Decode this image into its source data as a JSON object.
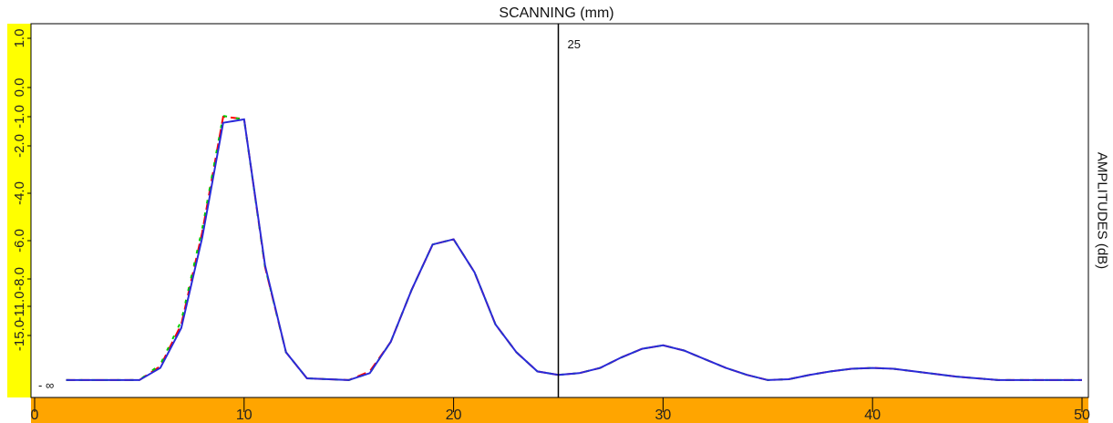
{
  "chart_data": {
    "type": "line",
    "title": "SCANNING (mm)",
    "ylabel": "AMPLITUDES (dB)",
    "xlabel": "",
    "xlim": [
      0,
      50
    ],
    "x_ticks": [
      0,
      10,
      20,
      30,
      40,
      50
    ],
    "x_tick_labels": [
      "0",
      "10",
      "20",
      "30",
      "40",
      "50"
    ],
    "y_tick_labels": [
      "1.0",
      "0.0",
      "-1.0",
      "-2.0",
      "-4.0",
      "-6.0",
      "-8.0",
      "-11.0",
      "-15.0"
    ],
    "bottom_label": "- ∞",
    "cursor": {
      "x": 25,
      "label": "25"
    },
    "series": [
      {
        "color": "#ff0000",
        "points": [
          [
            1.5,
            -20
          ],
          [
            5,
            -20
          ],
          [
            6,
            -19.2
          ],
          [
            7,
            -16.8
          ],
          [
            8,
            -11.5
          ],
          [
            9,
            -4.85
          ],
          [
            10,
            -4.98
          ],
          [
            11,
            -13.5
          ],
          [
            12,
            -18.4
          ],
          [
            13,
            -19.9
          ],
          [
            15,
            -20
          ],
          [
            16,
            -19.5
          ],
          [
            17,
            -17.8
          ],
          [
            18,
            -14.8
          ],
          [
            19,
            -12.2
          ],
          [
            20,
            -11.9
          ],
          [
            21,
            -13.8
          ],
          [
            22,
            -16.8
          ],
          [
            23,
            -18.4
          ],
          [
            24,
            -19.5
          ],
          [
            25,
            -19.7
          ],
          [
            26,
            -19.6
          ],
          [
            27,
            -19.3
          ],
          [
            28,
            -18.7
          ],
          [
            29,
            -18.2
          ],
          [
            30,
            -18
          ],
          [
            31,
            -18.3
          ],
          [
            32,
            -18.8
          ],
          [
            33,
            -19.3
          ],
          [
            34,
            -19.7
          ],
          [
            35,
            -20
          ],
          [
            36,
            -19.95
          ],
          [
            37,
            -19.7
          ],
          [
            38,
            -19.5
          ],
          [
            39,
            -19.35
          ],
          [
            40,
            -19.3
          ],
          [
            41,
            -19.35
          ],
          [
            42,
            -19.5
          ],
          [
            43,
            -19.65
          ],
          [
            44,
            -19.8
          ],
          [
            45,
            -19.9
          ],
          [
            46,
            -20
          ],
          [
            50,
            -20
          ]
        ]
      },
      {
        "color": "#00cc00",
        "points": [
          [
            1.5,
            -20
          ],
          [
            5,
            -20
          ],
          [
            6,
            -19.1
          ],
          [
            7,
            -16.6
          ],
          [
            8,
            -11.3
          ],
          [
            9,
            -4.8
          ],
          [
            10,
            -5.02
          ],
          [
            11,
            -13.5
          ],
          [
            12,
            -18.4
          ],
          [
            13,
            -19.9
          ],
          [
            15,
            -20
          ],
          [
            16,
            -19.6
          ],
          [
            17,
            -17.8
          ],
          [
            18,
            -14.8
          ],
          [
            19,
            -12.2
          ],
          [
            20,
            -11.9
          ],
          [
            21,
            -13.8
          ],
          [
            22,
            -16.8
          ],
          [
            23,
            -18.4
          ],
          [
            24,
            -19.5
          ],
          [
            25,
            -19.7
          ],
          [
            26,
            -19.6
          ],
          [
            27,
            -19.3
          ],
          [
            28,
            -18.7
          ],
          [
            29,
            -18.2
          ],
          [
            30,
            -18
          ],
          [
            31,
            -18.3
          ],
          [
            32,
            -18.8
          ],
          [
            33,
            -19.3
          ],
          [
            34,
            -19.7
          ],
          [
            35,
            -20
          ],
          [
            36,
            -19.95
          ],
          [
            37,
            -19.7
          ],
          [
            38,
            -19.5
          ],
          [
            39,
            -19.35
          ],
          [
            40,
            -19.3
          ],
          [
            41,
            -19.35
          ],
          [
            42,
            -19.5
          ],
          [
            43,
            -19.65
          ],
          [
            44,
            -19.8
          ],
          [
            45,
            -19.9
          ],
          [
            46,
            -20
          ],
          [
            50,
            -20
          ]
        ]
      },
      {
        "color": "#2a2ad8",
        "points": [
          [
            1.5,
            -20
          ],
          [
            5,
            -20
          ],
          [
            6,
            -19.3
          ],
          [
            7,
            -17
          ],
          [
            8,
            -11.8
          ],
          [
            9,
            -5.2
          ],
          [
            10,
            -5.0
          ],
          [
            11,
            -13.4
          ],
          [
            12,
            -18.4
          ],
          [
            13,
            -19.9
          ],
          [
            15,
            -20
          ],
          [
            16,
            -19.6
          ],
          [
            17,
            -17.8
          ],
          [
            18,
            -14.8
          ],
          [
            19,
            -12.2
          ],
          [
            20,
            -11.9
          ],
          [
            21,
            -13.8
          ],
          [
            22,
            -16.8
          ],
          [
            23,
            -18.4
          ],
          [
            24,
            -19.5
          ],
          [
            25,
            -19.7
          ],
          [
            26,
            -19.6
          ],
          [
            27,
            -19.3
          ],
          [
            28,
            -18.7
          ],
          [
            29,
            -18.2
          ],
          [
            30,
            -18
          ],
          [
            31,
            -18.3
          ],
          [
            32,
            -18.8
          ],
          [
            33,
            -19.3
          ],
          [
            34,
            -19.7
          ],
          [
            35,
            -20
          ],
          [
            36,
            -19.95
          ],
          [
            37,
            -19.7
          ],
          [
            38,
            -19.5
          ],
          [
            39,
            -19.35
          ],
          [
            40,
            -19.3
          ],
          [
            41,
            -19.35
          ],
          [
            42,
            -19.5
          ],
          [
            43,
            -19.65
          ],
          [
            44,
            -19.8
          ],
          [
            45,
            -19.9
          ],
          [
            46,
            -20
          ],
          [
            50,
            -20
          ]
        ]
      }
    ]
  }
}
